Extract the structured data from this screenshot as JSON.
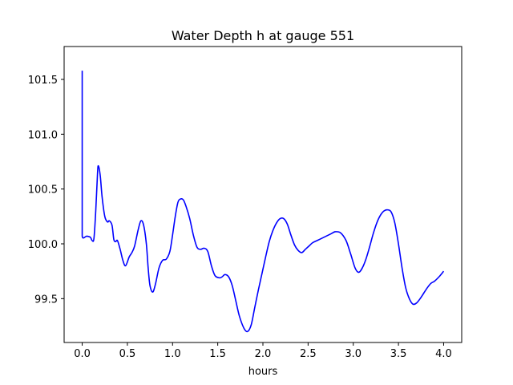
{
  "chart_data": {
    "type": "line",
    "title": "Water Depth h at gauge 551",
    "xlabel": "hours",
    "ylabel": "",
    "xlim": [
      -0.2,
      4.2
    ],
    "ylim": [
      99.1,
      101.8
    ],
    "xticks": [
      0.0,
      0.5,
      1.0,
      1.5,
      2.0,
      2.5,
      3.0,
      3.5,
      4.0
    ],
    "xtick_labels": [
      "0.0",
      "0.5",
      "1.0",
      "1.5",
      "2.0",
      "2.5",
      "3.0",
      "3.5",
      "4.0"
    ],
    "yticks": [
      99.5,
      100.0,
      100.5,
      101.0,
      101.5
    ],
    "ytick_labels": [
      "99.5",
      "100.0",
      "100.5",
      "101.0",
      "101.5"
    ],
    "grid": false,
    "legend": "none",
    "series": [
      {
        "color": "#0000ff",
        "x": [
          0.0,
          0.0,
          0.0,
          0.05,
          0.09,
          0.11,
          0.13,
          0.15,
          0.17,
          0.18,
          0.2,
          0.22,
          0.25,
          0.28,
          0.3,
          0.33,
          0.35,
          0.37,
          0.39,
          0.42,
          0.45,
          0.48,
          0.52,
          0.55,
          0.58,
          0.62,
          0.65,
          0.68,
          0.71,
          0.73,
          0.75,
          0.78,
          0.81,
          0.85,
          0.89,
          0.93,
          0.97,
          1.0,
          1.03,
          1.06,
          1.09,
          1.12,
          1.15,
          1.19,
          1.23,
          1.27,
          1.31,
          1.35,
          1.39,
          1.43,
          1.47,
          1.52,
          1.55,
          1.58,
          1.62,
          1.66,
          1.7,
          1.74,
          1.79,
          1.83,
          1.87,
          1.91,
          1.95,
          1.99,
          2.03,
          2.07,
          2.11,
          2.15,
          2.19,
          2.23,
          2.27,
          2.31,
          2.35,
          2.39,
          2.43,
          2.47,
          2.51,
          2.55,
          2.6,
          2.65,
          2.7,
          2.75,
          2.8,
          2.86,
          2.92,
          2.97,
          3.02,
          3.06,
          3.1,
          3.14,
          3.18,
          3.22,
          3.26,
          3.3,
          3.34,
          3.38,
          3.42,
          3.46,
          3.5,
          3.54,
          3.58,
          3.62,
          3.66,
          3.7,
          3.74,
          3.78,
          3.82,
          3.86,
          3.9,
          3.95,
          4.0
        ],
        "y": [
          101.58,
          100.3,
          100.07,
          100.07,
          100.06,
          100.03,
          100.05,
          100.3,
          100.65,
          100.71,
          100.62,
          100.43,
          100.25,
          100.2,
          100.21,
          100.17,
          100.04,
          100.02,
          100.03,
          99.95,
          99.85,
          99.8,
          99.88,
          99.92,
          99.98,
          100.13,
          100.21,
          100.17,
          100.0,
          99.78,
          99.62,
          99.56,
          99.63,
          99.78,
          99.85,
          99.86,
          99.93,
          100.08,
          100.25,
          100.38,
          100.41,
          100.4,
          100.34,
          100.23,
          100.08,
          99.97,
          99.95,
          99.96,
          99.93,
          99.8,
          99.71,
          99.69,
          99.7,
          99.72,
          99.7,
          99.62,
          99.48,
          99.34,
          99.23,
          99.2,
          99.26,
          99.42,
          99.58,
          99.73,
          99.88,
          100.02,
          100.12,
          100.19,
          100.23,
          100.23,
          100.18,
          100.08,
          99.99,
          99.94,
          99.92,
          99.95,
          99.98,
          100.01,
          100.03,
          100.05,
          100.07,
          100.09,
          100.11,
          100.1,
          100.03,
          99.91,
          99.78,
          99.74,
          99.78,
          99.86,
          99.97,
          100.09,
          100.19,
          100.26,
          100.3,
          100.31,
          100.29,
          100.19,
          100.0,
          99.78,
          99.6,
          99.5,
          99.45,
          99.46,
          99.5,
          99.55,
          99.6,
          99.64,
          99.66,
          99.7,
          99.75
        ]
      }
    ]
  }
}
